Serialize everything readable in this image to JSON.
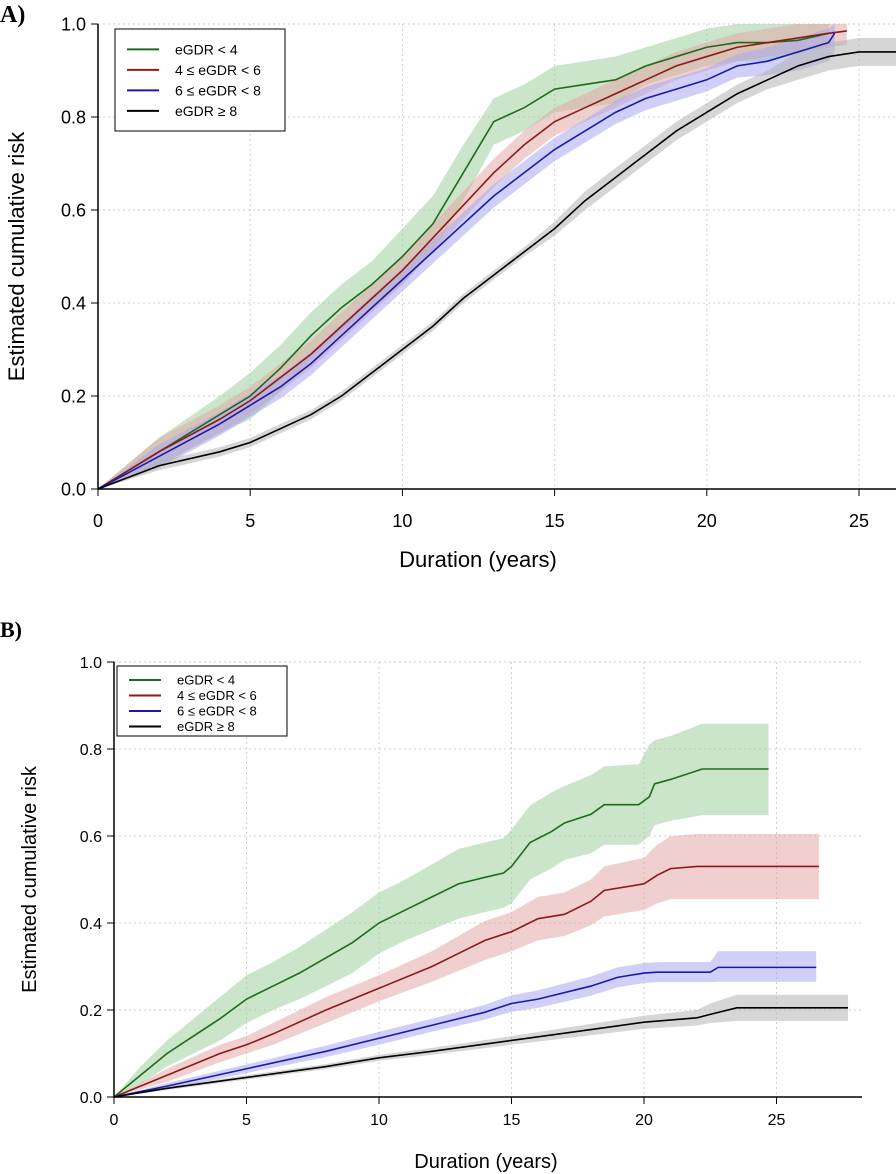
{
  "chart_data": [
    {
      "panel_label": "A)",
      "type": "line",
      "xlabel": "Duration (years)",
      "ylabel": "Estimated cumulative risk",
      "xlim": [
        0,
        26.5
      ],
      "ylim": [
        0,
        1
      ],
      "xticks": [
        0,
        5,
        10,
        15,
        20,
        25
      ],
      "yticks": [
        "0.0",
        "0.2",
        "0.4",
        "0.6",
        "0.8",
        "1.0"
      ],
      "grid": true,
      "legend_position": "top-left",
      "series": [
        {
          "name": "eGDR < 4",
          "color": "#1e6b1e",
          "band_color": "#9fcf9f",
          "x": [
            0,
            2,
            4,
            5,
            6,
            7,
            8,
            9,
            10,
            11,
            12,
            13,
            14,
            15,
            16,
            17,
            18,
            19,
            20,
            21,
            22,
            23,
            24
          ],
          "y": [
            0,
            0.08,
            0.16,
            0.2,
            0.26,
            0.33,
            0.39,
            0.44,
            0.5,
            0.57,
            0.68,
            0.79,
            0.82,
            0.86,
            0.87,
            0.88,
            0.91,
            0.93,
            0.95,
            0.96,
            0.96,
            0.965,
            0.98
          ],
          "lower": [
            0,
            0.05,
            0.12,
            0.15,
            0.21,
            0.28,
            0.34,
            0.39,
            0.44,
            0.51,
            0.62,
            0.74,
            0.77,
            0.81,
            0.82,
            0.83,
            0.87,
            0.89,
            0.91,
            0.92,
            0.92,
            0.935,
            0.96
          ],
          "upper": [
            0,
            0.11,
            0.2,
            0.25,
            0.31,
            0.38,
            0.44,
            0.49,
            0.56,
            0.63,
            0.74,
            0.84,
            0.87,
            0.91,
            0.92,
            0.93,
            0.95,
            0.97,
            0.99,
            1,
            1,
            1,
            1
          ]
        },
        {
          "name": "4 ≤ eGDR < 6",
          "color": "#8b1a1a",
          "band_color": "#e3a8a8",
          "x": [
            0,
            2,
            4,
            5,
            6,
            7,
            8,
            9,
            10,
            11,
            12,
            13,
            14,
            15,
            16,
            17,
            18,
            19,
            20,
            21,
            22,
            23,
            24,
            24.6
          ],
          "y": [
            0,
            0.08,
            0.15,
            0.19,
            0.24,
            0.29,
            0.35,
            0.41,
            0.47,
            0.54,
            0.61,
            0.68,
            0.74,
            0.79,
            0.82,
            0.85,
            0.88,
            0.91,
            0.93,
            0.95,
            0.96,
            0.97,
            0.98,
            0.985
          ],
          "lower": [
            0,
            0.05,
            0.12,
            0.16,
            0.21,
            0.26,
            0.32,
            0.38,
            0.44,
            0.51,
            0.58,
            0.65,
            0.71,
            0.76,
            0.79,
            0.82,
            0.85,
            0.88,
            0.9,
            0.92,
            0.93,
            0.94,
            0.95,
            0.955
          ],
          "upper": [
            0,
            0.11,
            0.18,
            0.22,
            0.27,
            0.32,
            0.38,
            0.44,
            0.5,
            0.57,
            0.64,
            0.71,
            0.77,
            0.82,
            0.85,
            0.88,
            0.91,
            0.94,
            0.96,
            0.98,
            0.99,
            1,
            1,
            1
          ]
        },
        {
          "name": "6 ≤ eGDR < 8",
          "color": "#1a1aa8",
          "band_color": "#a8a8f0",
          "x": [
            0,
            2,
            4,
            5,
            6,
            7,
            8,
            9,
            10,
            11,
            12,
            13,
            14,
            15,
            16,
            17,
            18,
            19,
            20,
            21,
            22,
            23,
            24,
            24.2
          ],
          "y": [
            0,
            0.07,
            0.14,
            0.18,
            0.22,
            0.27,
            0.33,
            0.39,
            0.45,
            0.51,
            0.57,
            0.63,
            0.68,
            0.73,
            0.77,
            0.81,
            0.84,
            0.86,
            0.88,
            0.91,
            0.92,
            0.94,
            0.96,
            0.98
          ],
          "lower": [
            0,
            0.045,
            0.115,
            0.155,
            0.195,
            0.245,
            0.305,
            0.365,
            0.425,
            0.485,
            0.545,
            0.605,
            0.655,
            0.705,
            0.745,
            0.785,
            0.815,
            0.835,
            0.855,
            0.885,
            0.89,
            0.9,
            0.92,
            0.94
          ],
          "upper": [
            0,
            0.095,
            0.165,
            0.205,
            0.245,
            0.295,
            0.355,
            0.415,
            0.475,
            0.535,
            0.595,
            0.655,
            0.705,
            0.755,
            0.795,
            0.835,
            0.865,
            0.885,
            0.905,
            0.935,
            0.95,
            0.97,
            0.99,
            1
          ]
        },
        {
          "name": "eGDR ≥ 8",
          "color": "#000000",
          "band_color": "#b4b4b4",
          "x": [
            0,
            2,
            4,
            5,
            6,
            7,
            8,
            9,
            10,
            11,
            12,
            13,
            14,
            15,
            16,
            17,
            18,
            19,
            20,
            21,
            22,
            23,
            24,
            25,
            26.5
          ],
          "y": [
            0,
            0.05,
            0.08,
            0.1,
            0.13,
            0.16,
            0.2,
            0.25,
            0.3,
            0.35,
            0.41,
            0.46,
            0.51,
            0.56,
            0.62,
            0.67,
            0.72,
            0.77,
            0.81,
            0.85,
            0.88,
            0.91,
            0.93,
            0.94,
            0.94
          ],
          "lower": [
            0,
            0.04,
            0.07,
            0.09,
            0.12,
            0.15,
            0.19,
            0.24,
            0.29,
            0.34,
            0.4,
            0.45,
            0.5,
            0.545,
            0.6,
            0.65,
            0.7,
            0.75,
            0.79,
            0.83,
            0.86,
            0.88,
            0.9,
            0.91,
            0.91
          ],
          "upper": [
            0,
            0.06,
            0.09,
            0.11,
            0.14,
            0.17,
            0.21,
            0.26,
            0.31,
            0.36,
            0.42,
            0.47,
            0.52,
            0.575,
            0.64,
            0.69,
            0.74,
            0.79,
            0.83,
            0.87,
            0.9,
            0.94,
            0.96,
            0.97,
            0.97
          ]
        }
      ]
    },
    {
      "panel_label": "B)",
      "type": "line",
      "xlabel": "Duration (years)",
      "ylabel": "Estimated cumulative risk",
      "xlim": [
        0,
        27.7
      ],
      "ylim": [
        0,
        1
      ],
      "xticks": [
        0,
        5,
        10,
        15,
        20,
        25
      ],
      "yticks": [
        "0.0",
        "0.2",
        "0.4",
        "0.6",
        "0.8",
        "1.0"
      ],
      "grid": true,
      "legend_position": "top-left",
      "series": [
        {
          "name": "eGDR < 4",
          "color": "#1e6b1e",
          "band_color": "#9fcf9f",
          "x": [
            0,
            1,
            2,
            3,
            4,
            5,
            6,
            7,
            8,
            9,
            10,
            11,
            12,
            13,
            14,
            14.7,
            15,
            15.7,
            16.5,
            17,
            18,
            18.5,
            19.8,
            20.2,
            20.4,
            21,
            22.2,
            24.7
          ],
          "y": [
            0,
            0.05,
            0.1,
            0.14,
            0.18,
            0.225,
            0.255,
            0.285,
            0.32,
            0.355,
            0.4,
            0.43,
            0.46,
            0.49,
            0.505,
            0.515,
            0.53,
            0.585,
            0.61,
            0.63,
            0.65,
            0.672,
            0.672,
            0.69,
            0.72,
            0.73,
            0.754,
            0.754
          ],
          "lower": [
            0,
            0.03,
            0.07,
            0.1,
            0.13,
            0.17,
            0.2,
            0.225,
            0.255,
            0.285,
            0.33,
            0.36,
            0.385,
            0.41,
            0.425,
            0.435,
            0.445,
            0.5,
            0.525,
            0.545,
            0.56,
            0.58,
            0.58,
            0.6,
            0.625,
            0.635,
            0.648,
            0.648
          ],
          "upper": [
            0,
            0.07,
            0.13,
            0.18,
            0.23,
            0.28,
            0.31,
            0.345,
            0.385,
            0.425,
            0.47,
            0.5,
            0.535,
            0.57,
            0.585,
            0.595,
            0.615,
            0.67,
            0.7,
            0.715,
            0.74,
            0.76,
            0.765,
            0.81,
            0.82,
            0.83,
            0.858,
            0.858
          ]
        },
        {
          "name": "4 ≤ eGDR < 6",
          "color": "#8b1a1a",
          "band_color": "#e3a8a8",
          "x": [
            0,
            2,
            4,
            5,
            6,
            8,
            10,
            12,
            13,
            14,
            15,
            16,
            17,
            18,
            18.5,
            20,
            20.5,
            21,
            22,
            26.6
          ],
          "y": [
            0,
            0.05,
            0.1,
            0.12,
            0.145,
            0.2,
            0.25,
            0.3,
            0.33,
            0.36,
            0.38,
            0.41,
            0.42,
            0.45,
            0.475,
            0.49,
            0.51,
            0.525,
            0.53,
            0.53
          ],
          "lower": [
            0,
            0.035,
            0.08,
            0.1,
            0.12,
            0.17,
            0.22,
            0.265,
            0.29,
            0.315,
            0.335,
            0.36,
            0.37,
            0.395,
            0.415,
            0.43,
            0.445,
            0.455,
            0.455,
            0.455
          ],
          "upper": [
            0,
            0.065,
            0.12,
            0.14,
            0.17,
            0.23,
            0.28,
            0.335,
            0.37,
            0.405,
            0.425,
            0.46,
            0.47,
            0.5,
            0.53,
            0.55,
            0.58,
            0.6,
            0.605,
            0.605
          ]
        },
        {
          "name": "6 ≤ eGDR < 8",
          "color": "#1a1aa8",
          "band_color": "#a8a8f0",
          "x": [
            0,
            2,
            5,
            8,
            10,
            12,
            14,
            15,
            16,
            18,
            19,
            20,
            20.5,
            22.5,
            22.8,
            26.5
          ],
          "y": [
            0,
            0.025,
            0.065,
            0.105,
            0.135,
            0.165,
            0.195,
            0.215,
            0.225,
            0.255,
            0.275,
            0.285,
            0.287,
            0.287,
            0.298,
            0.298
          ],
          "lower": [
            0,
            0.018,
            0.055,
            0.092,
            0.12,
            0.15,
            0.178,
            0.196,
            0.205,
            0.233,
            0.252,
            0.262,
            0.264,
            0.264,
            0.265,
            0.265
          ],
          "upper": [
            0,
            0.032,
            0.075,
            0.118,
            0.15,
            0.18,
            0.212,
            0.234,
            0.245,
            0.277,
            0.298,
            0.308,
            0.31,
            0.31,
            0.335,
            0.335
          ]
        },
        {
          "name": "eGDR ≥ 8",
          "color": "#000000",
          "band_color": "#b4b4b4",
          "x": [
            0,
            2,
            5,
            8,
            10,
            12,
            15,
            18,
            20,
            22,
            22.5,
            23.5,
            27.7
          ],
          "y": [
            0,
            0.02,
            0.045,
            0.07,
            0.09,
            0.105,
            0.13,
            0.155,
            0.172,
            0.182,
            0.19,
            0.205,
            0.205
          ],
          "lower": [
            0,
            0.016,
            0.04,
            0.064,
            0.083,
            0.097,
            0.12,
            0.142,
            0.157,
            0.164,
            0.17,
            0.175,
            0.175
          ],
          "upper": [
            0,
            0.024,
            0.05,
            0.076,
            0.097,
            0.113,
            0.14,
            0.168,
            0.187,
            0.2,
            0.215,
            0.235,
            0.235
          ]
        }
      ]
    }
  ]
}
